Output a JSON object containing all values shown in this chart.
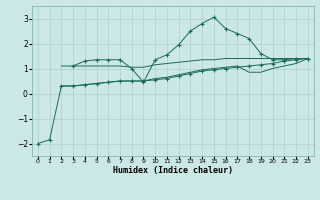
{
  "xlabel": "Humidex (Indice chaleur)",
  "bg_color": "#cce8e6",
  "line_color": "#1a6b5a",
  "grid_color": "#aed0cc",
  "xlim": [
    -0.5,
    23.5
  ],
  "ylim": [
    -2.5,
    3.5
  ],
  "xticks": [
    0,
    1,
    2,
    3,
    4,
    5,
    6,
    7,
    8,
    9,
    10,
    11,
    12,
    13,
    14,
    15,
    16,
    17,
    18,
    19,
    20,
    21,
    22,
    23
  ],
  "yticks": [
    -2,
    -1,
    0,
    1,
    2,
    3
  ],
  "series": [
    {
      "x": [
        0,
        1,
        2,
        3,
        4,
        5,
        6,
        7,
        8,
        9,
        10,
        11,
        12,
        13,
        14,
        15,
        16,
        17,
        18,
        19,
        20,
        21,
        22,
        23
      ],
      "y": [
        -2.0,
        -1.85,
        0.3,
        0.3,
        0.35,
        0.4,
        0.45,
        0.5,
        0.5,
        0.5,
        0.55,
        0.6,
        0.7,
        0.8,
        0.9,
        0.95,
        1.0,
        1.05,
        1.1,
        1.15,
        1.2,
        1.3,
        1.35,
        1.4
      ],
      "marker": "+"
    },
    {
      "x": [
        3,
        4,
        5,
        6,
        7,
        8,
        9,
        10,
        11,
        12,
        13,
        14,
        15,
        16,
        17,
        18,
        19,
        20,
        21,
        22,
        23
      ],
      "y": [
        1.1,
        1.3,
        1.35,
        1.35,
        1.35,
        1.0,
        0.45,
        1.35,
        1.55,
        1.95,
        2.5,
        2.8,
        3.05,
        2.6,
        2.4,
        2.2,
        1.6,
        1.35,
        1.35,
        1.4,
        1.4
      ],
      "marker": "+"
    },
    {
      "x": [
        2,
        3,
        4,
        5,
        6,
        7,
        8,
        9,
        10,
        11,
        12,
        13,
        14,
        15,
        16,
        17,
        18,
        19,
        20,
        21,
        22,
        23
      ],
      "y": [
        0.3,
        0.3,
        0.35,
        0.4,
        0.45,
        0.5,
        0.5,
        0.5,
        0.6,
        0.65,
        0.75,
        0.85,
        0.95,
        1.0,
        1.05,
        1.1,
        0.85,
        0.85,
        1.0,
        1.1,
        1.2,
        1.4
      ],
      "marker": null
    },
    {
      "x": [
        2,
        3,
        4,
        5,
        6,
        7,
        8,
        9,
        10,
        11,
        12,
        13,
        14,
        15,
        16,
        17,
        18,
        19,
        20,
        21,
        22,
        23
      ],
      "y": [
        1.1,
        1.1,
        1.1,
        1.1,
        1.1,
        1.1,
        1.05,
        1.05,
        1.15,
        1.2,
        1.25,
        1.3,
        1.35,
        1.35,
        1.4,
        1.4,
        1.4,
        1.4,
        1.4,
        1.4,
        1.4,
        1.4
      ],
      "marker": null
    }
  ]
}
